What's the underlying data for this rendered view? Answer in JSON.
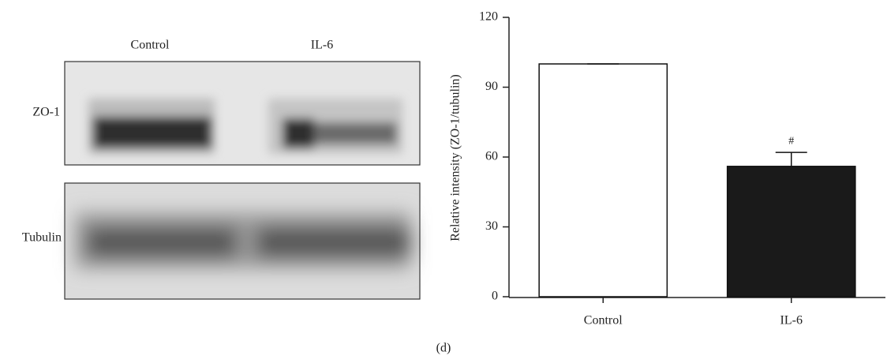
{
  "blot": {
    "lanes": [
      "Control",
      "IL-6"
    ],
    "rows": [
      "ZO-1",
      "Tubulin"
    ]
  },
  "panel_label": "(d)",
  "chart_data": {
    "type": "bar",
    "y_label": "Relative intensity (ZO-1/tubulin)",
    "categories": [
      "Control",
      "IL-6"
    ],
    "values": [
      100,
      56
    ],
    "errors": [
      0,
      6
    ],
    "colors": [
      "#ffffff",
      "#1a1a1a"
    ],
    "annotation": "#",
    "ylim": [
      0,
      120
    ],
    "yticks": [
      0,
      30,
      60,
      90,
      120
    ]
  }
}
